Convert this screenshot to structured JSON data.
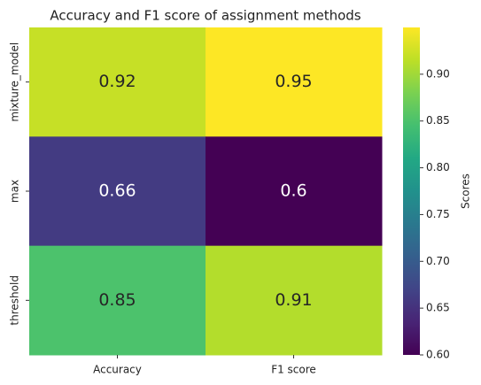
{
  "chart_data": {
    "type": "heatmap",
    "title": "Accuracy and F1 score of assignment methods",
    "x_categories": [
      "Accuracy",
      "F1 score"
    ],
    "y_categories": [
      "mixture_model",
      "max",
      "threshold"
    ],
    "values": [
      [
        0.92,
        0.95
      ],
      [
        0.66,
        0.6
      ],
      [
        0.85,
        0.91
      ]
    ],
    "colormap": "viridis",
    "colorbar_label": "Scores",
    "clim": [
      0.6,
      0.95
    ],
    "cticks": [
      {
        "value": 0.6,
        "label": "0.60"
      },
      0.65,
      {
        "value": 0.7,
        "label": "0.70"
      },
      0.75,
      {
        "value": 0.8,
        "label": "0.80"
      },
      0.85,
      {
        "value": 0.9,
        "label": "0.90"
      }
    ]
  }
}
